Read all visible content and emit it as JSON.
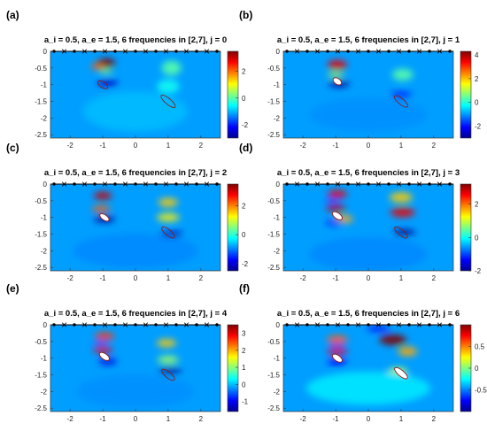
{
  "chart_data": [
    {
      "type": "heatmap",
      "panel_label": "(a)",
      "title": "a_i = 0.5,   a_e = 1.5,   6 frequencies in [2,7],  j = 0",
      "xlim": [
        -2.6,
        2.6
      ],
      "ylim": [
        -2.6,
        0
      ],
      "xticks": [
        "-2",
        "-1",
        "0",
        "1",
        "2"
      ],
      "yticks": [
        "0",
        "-0.5",
        "-1",
        "-1.5",
        "-2",
        "-2.5"
      ],
      "colorbar": {
        "range": [
          -3,
          3.5
        ],
        "ticks": [
          "2",
          "0",
          "-2"
        ]
      },
      "blobs": [
        {
          "x": -0.9,
          "y": -0.35,
          "sx": 0.28,
          "sy": 0.14,
          "a": 1
        },
        {
          "x": -1.15,
          "y": -0.45,
          "sx": 0.2,
          "sy": 0.1,
          "a": 0.7
        },
        {
          "x": -0.85,
          "y": -0.95,
          "sx": 0.32,
          "sy": 0.1,
          "a": -0.8
        },
        {
          "x": -0.9,
          "y": -0.6,
          "sx": 0.2,
          "sy": 0.06,
          "a": 0.35
        },
        {
          "x": 1.1,
          "y": -0.5,
          "sx": 0.3,
          "sy": 0.22,
          "a": 0.25
        },
        {
          "x": 1.0,
          "y": -1.05,
          "sx": 0.35,
          "sy": 0.2,
          "a": 0.15
        },
        {
          "x": 0.0,
          "y": -1.8,
          "sx": 1.6,
          "sy": 0.6,
          "a": 0.04
        }
      ],
      "scatterers": [
        {
          "x": -1.0,
          "y": -1.0,
          "rx": 0.09,
          "ry": 0.17,
          "rot": -55,
          "fill": "none"
        },
        {
          "x": 1.0,
          "y": -1.5,
          "rx": 0.09,
          "ry": 0.27,
          "rot": -50,
          "fill": "none"
        }
      ]
    },
    {
      "type": "heatmap",
      "panel_label": "(b)",
      "title": "a_i = 0.5,   a_e = 1.5,   6 frequencies in [2,7],  j = 1",
      "xlim": [
        -2.6,
        2.6
      ],
      "ylim": [
        -2.6,
        0
      ],
      "xticks": [
        "-2",
        "-1",
        "0",
        "1",
        "2"
      ],
      "yticks": [
        "0",
        "-0.5",
        "-1",
        "-1.5",
        "-2",
        "-2.5"
      ],
      "colorbar": {
        "range": [
          -3,
          4.3
        ],
        "ticks": [
          "4",
          "2",
          "0",
          "-2"
        ]
      },
      "blobs": [
        {
          "x": -0.95,
          "y": -0.4,
          "sx": 0.3,
          "sy": 0.14,
          "a": 0.85
        },
        {
          "x": -0.9,
          "y": -0.97,
          "sx": 0.32,
          "sy": 0.1,
          "a": -1
        },
        {
          "x": -1.0,
          "y": -0.7,
          "sx": 0.25,
          "sy": 0.07,
          "a": 0.4
        },
        {
          "x": 1.05,
          "y": -0.7,
          "sx": 0.32,
          "sy": 0.18,
          "a": 0.25
        },
        {
          "x": 1.0,
          "y": -1.3,
          "sx": 0.32,
          "sy": 0.1,
          "a": -0.45
        },
        {
          "x": 0.0,
          "y": -1.9,
          "sx": 1.8,
          "sy": 0.5,
          "a": -0.05
        }
      ],
      "scatterers": [
        {
          "x": -0.95,
          "y": -0.9,
          "rx": 0.09,
          "ry": 0.14,
          "rot": -55,
          "fill": "#ffffff"
        },
        {
          "x": 1.0,
          "y": -1.5,
          "rx": 0.09,
          "ry": 0.25,
          "rot": -50,
          "fill": "none"
        }
      ]
    },
    {
      "type": "heatmap",
      "panel_label": "(c)",
      "title": "a_i = 0.5,   a_e = 1.5,   6 frequencies in [2,7],  j = 2",
      "xlim": [
        -2.6,
        2.6
      ],
      "ylim": [
        -2.6,
        0
      ],
      "xticks": [
        "-2",
        "-1",
        "0",
        "1",
        "2"
      ],
      "yticks": [
        "0",
        "-0.5",
        "-1",
        "-1.5",
        "-2",
        "-2.5"
      ],
      "colorbar": {
        "range": [
          -2.5,
          3.5
        ],
        "ticks": [
          "2",
          "0",
          "-2"
        ]
      },
      "blobs": [
        {
          "x": -1.0,
          "y": -0.35,
          "sx": 0.28,
          "sy": 0.12,
          "a": 0.9
        },
        {
          "x": -1.05,
          "y": -0.75,
          "sx": 0.28,
          "sy": 0.1,
          "a": 0.7
        },
        {
          "x": -0.95,
          "y": -1.05,
          "sx": 0.32,
          "sy": 0.1,
          "a": -1
        },
        {
          "x": 1.0,
          "y": -0.55,
          "sx": 0.3,
          "sy": 0.13,
          "a": 0.55
        },
        {
          "x": 1.0,
          "y": -1.0,
          "sx": 0.35,
          "sy": 0.12,
          "a": 0.5
        },
        {
          "x": 1.1,
          "y": -1.5,
          "sx": 0.35,
          "sy": 0.09,
          "a": -0.85
        },
        {
          "x": 0.0,
          "y": -2.0,
          "sx": 1.9,
          "sy": 0.5,
          "a": -0.08
        }
      ],
      "scatterers": [
        {
          "x": -0.95,
          "y": -1.0,
          "rx": 0.08,
          "ry": 0.16,
          "rot": -55,
          "fill": "#ffffff"
        },
        {
          "x": 1.0,
          "y": -1.45,
          "rx": 0.09,
          "ry": 0.24,
          "rot": -50,
          "fill": "none"
        }
      ]
    },
    {
      "type": "heatmap",
      "panel_label": "(d)",
      "title": "a_i = 0.5,   a_e = 1.5,   6 frequencies in [2,7],  j = 3",
      "xlim": [
        -2.6,
        2.6
      ],
      "ylim": [
        -2.6,
        0
      ],
      "xticks": [
        "-2",
        "-1",
        "0",
        "1",
        "2"
      ],
      "yticks": [
        "0",
        "-0.5",
        "-1",
        "-1.5",
        "-2",
        "-2.5"
      ],
      "colorbar": {
        "range": [
          -2,
          3.2
        ],
        "ticks": [
          "2",
          "0",
          "-2"
        ]
      },
      "blobs": [
        {
          "x": -0.95,
          "y": -0.3,
          "sx": 0.3,
          "sy": 0.12,
          "a": 0.85
        },
        {
          "x": -1.0,
          "y": -0.72,
          "sx": 0.3,
          "sy": 0.1,
          "a": 0.9
        },
        {
          "x": -0.75,
          "y": -1.05,
          "sx": 0.28,
          "sy": 0.12,
          "a": 0.6
        },
        {
          "x": -1.1,
          "y": -0.5,
          "sx": 0.2,
          "sy": 0.06,
          "a": -0.45
        },
        {
          "x": -1.05,
          "y": -1.15,
          "sx": 0.25,
          "sy": 0.08,
          "a": -0.5
        },
        {
          "x": 1.0,
          "y": -0.4,
          "sx": 0.35,
          "sy": 0.15,
          "a": 0.55
        },
        {
          "x": 1.05,
          "y": -0.85,
          "sx": 0.38,
          "sy": 0.14,
          "a": 0.85
        },
        {
          "x": 1.1,
          "y": -1.45,
          "sx": 0.35,
          "sy": 0.09,
          "a": -1
        },
        {
          "x": 0.0,
          "y": -2.1,
          "sx": 1.8,
          "sy": 0.5,
          "a": -0.08
        }
      ],
      "scatterers": [
        {
          "x": -0.95,
          "y": -0.95,
          "rx": 0.09,
          "ry": 0.17,
          "rot": -55,
          "fill": "#ffffff"
        },
        {
          "x": 1.0,
          "y": -1.45,
          "rx": 0.09,
          "ry": 0.24,
          "rot": -50,
          "fill": "none"
        }
      ]
    },
    {
      "type": "heatmap",
      "panel_label": "(e)",
      "title": "a_i = 0.5,   a_e = 1.5,   6 frequencies in [2,7],  j = 4",
      "xlim": [
        -2.6,
        2.6
      ],
      "ylim": [
        -2.6,
        0
      ],
      "xticks": [
        "-2",
        "-1",
        "0",
        "1",
        "2"
      ],
      "yticks": [
        "0",
        "-0.5",
        "-1",
        "-1.5",
        "-2",
        "-2.5"
      ],
      "colorbar": {
        "range": [
          -1.6,
          3.5
        ],
        "ticks": [
          "3",
          "2",
          "1",
          "0",
          "-1"
        ]
      },
      "blobs": [
        {
          "x": -0.95,
          "y": -0.35,
          "sx": 0.3,
          "sy": 0.12,
          "a": 0.75
        },
        {
          "x": -1.0,
          "y": -0.75,
          "sx": 0.3,
          "sy": 0.1,
          "a": 0.85
        },
        {
          "x": -0.85,
          "y": -1.1,
          "sx": 0.28,
          "sy": 0.1,
          "a": -0.7
        },
        {
          "x": -1.05,
          "y": -0.55,
          "sx": 0.22,
          "sy": 0.06,
          "a": -0.35
        },
        {
          "x": 0.95,
          "y": -0.55,
          "sx": 0.3,
          "sy": 0.12,
          "a": 0.55
        },
        {
          "x": 1.0,
          "y": -1.05,
          "sx": 0.32,
          "sy": 0.12,
          "a": 0.35
        },
        {
          "x": 1.05,
          "y": -1.38,
          "sx": 0.35,
          "sy": 0.09,
          "a": -1
        },
        {
          "x": 0.0,
          "y": -2.0,
          "sx": 1.8,
          "sy": 0.5,
          "a": -0.05
        }
      ],
      "scatterers": [
        {
          "x": -0.95,
          "y": -0.95,
          "rx": 0.09,
          "ry": 0.17,
          "rot": -55,
          "fill": "#ffffff"
        },
        {
          "x": 1.0,
          "y": -1.5,
          "rx": 0.09,
          "ry": 0.24,
          "rot": -50,
          "fill": "none"
        }
      ]
    },
    {
      "type": "heatmap",
      "panel_label": "(f)",
      "title": "a_i = 0.5,   a_e = 1.5,   6 frequencies in [2,7],  j = 6",
      "xlim": [
        -2.6,
        2.6
      ],
      "ylim": [
        -2.6,
        0
      ],
      "xticks": [
        "-2",
        "-1",
        "0",
        "1",
        "2"
      ],
      "yticks": [
        "0",
        "-0.5",
        "-1",
        "-1.5",
        "-2",
        "-2.5"
      ],
      "colorbar": {
        "range": [
          -1,
          1
        ],
        "ticks": [
          "0.5",
          "0",
          "-0.5"
        ]
      },
      "blobs": [
        {
          "x": -0.95,
          "y": -0.45,
          "sx": 0.32,
          "sy": 0.13,
          "a": 0.7
        },
        {
          "x": -0.95,
          "y": -0.8,
          "sx": 0.32,
          "sy": 0.1,
          "a": 0.85
        },
        {
          "x": -0.95,
          "y": -1.12,
          "sx": 0.3,
          "sy": 0.1,
          "a": -0.55
        },
        {
          "x": -0.95,
          "y": -0.62,
          "sx": 0.25,
          "sy": 0.06,
          "a": -0.4
        },
        {
          "x": 0.75,
          "y": -0.45,
          "sx": 0.42,
          "sy": 0.16,
          "a": 1
        },
        {
          "x": 1.2,
          "y": -0.8,
          "sx": 0.3,
          "sy": 0.14,
          "a": 0.6
        },
        {
          "x": 0.3,
          "y": -0.12,
          "sx": 0.35,
          "sy": 0.08,
          "a": -0.6
        },
        {
          "x": 0.9,
          "y": -1.4,
          "sx": 0.3,
          "sy": 0.12,
          "a": 0.4
        },
        {
          "x": 0.0,
          "y": -1.9,
          "sx": 1.9,
          "sy": 0.5,
          "a": 0.1
        }
      ],
      "scatterers": [
        {
          "x": -0.95,
          "y": -1.0,
          "rx": 0.09,
          "ry": 0.17,
          "rot": -55,
          "fill": "#ffffff"
        },
        {
          "x": 1.0,
          "y": -1.45,
          "rx": 0.09,
          "ry": 0.24,
          "rot": -50,
          "fill": "#ffffff"
        }
      ]
    }
  ],
  "colormap": [
    "#00008f",
    "#0000ff",
    "#0080ff",
    "#00ffff",
    "#80ff80",
    "#ffff00",
    "#ff8000",
    "#ff0000",
    "#800000"
  ],
  "background_level": 0.28,
  "receiver_markers": {
    "symbols": [
      "dot",
      "cross"
    ],
    "count": 17
  }
}
